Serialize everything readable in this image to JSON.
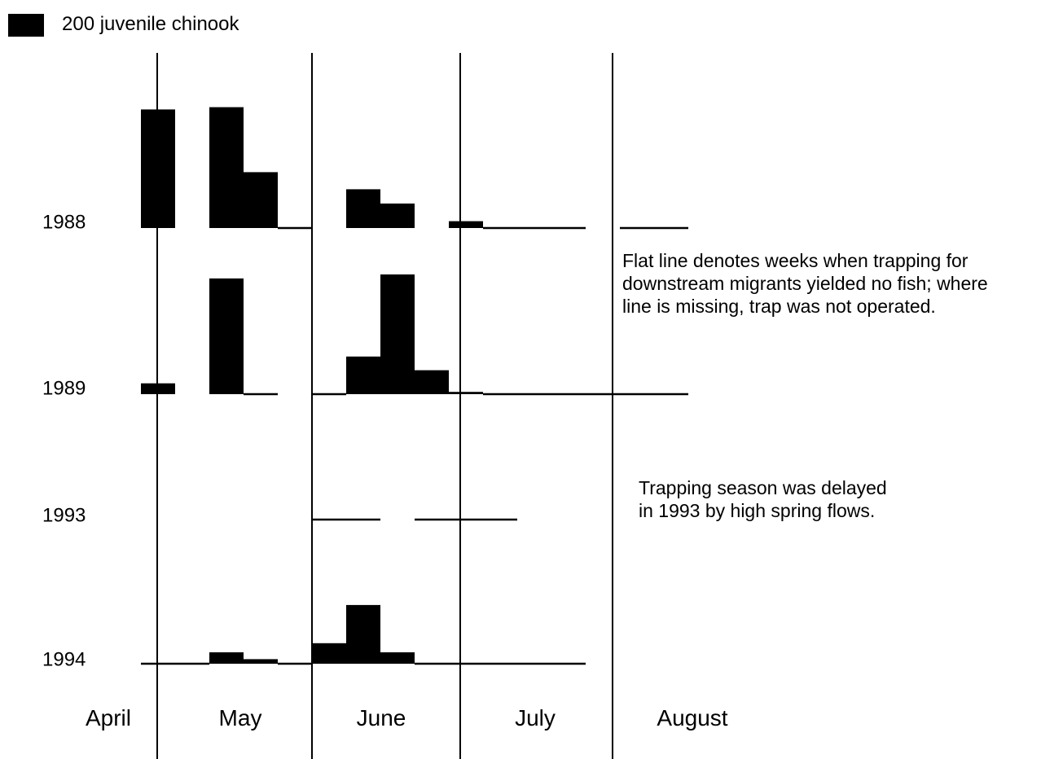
{
  "chart_data": {
    "type": "bar",
    "legend": {
      "value": 200,
      "label": "200 juvenile chinook"
    },
    "months": [
      "April",
      "May",
      "June",
      "July",
      "August"
    ],
    "categories": [
      null,
      null,
      null,
      null,
      null,
      null,
      null,
      null,
      null,
      null,
      null,
      null,
      null,
      null,
      null,
      null
    ],
    "series": [
      {
        "name": "1988",
        "color": "#000000",
        "values": [
          1040,
          null,
          1060,
          490,
          0,
          null,
          340,
          215,
          null,
          60,
          0,
          0,
          0,
          null,
          0,
          0
        ]
      },
      {
        "name": "1989",
        "color": "#000000",
        "values": [
          95,
          null,
          1015,
          0,
          null,
          0,
          330,
          1050,
          210,
          20,
          0,
          0,
          0,
          0,
          0,
          0
        ]
      },
      {
        "name": "1993",
        "color": "#000000",
        "values": [
          null,
          null,
          null,
          null,
          null,
          0,
          0,
          null,
          0,
          0,
          0,
          null,
          null,
          null,
          null,
          null
        ]
      },
      {
        "name": "1994",
        "color": "#000000",
        "values": [
          0,
          0,
          100,
          40,
          0,
          180,
          515,
          100,
          0,
          0,
          0,
          0,
          0,
          null,
          null,
          null
        ]
      }
    ],
    "annotations": [
      [
        "Flat line denotes weeks when trapping for",
        "downstream migrants yielded no fish; where",
        "line is missing, trap was not operated."
      ],
      [
        "Trapping season was delayed",
        "in 1993 by high spring flows."
      ]
    ]
  }
}
